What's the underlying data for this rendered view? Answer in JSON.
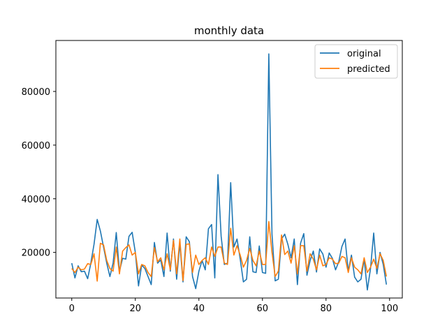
{
  "chart_data": {
    "type": "line",
    "title": "monthly data",
    "xlabel": "",
    "ylabel": "",
    "xlim": [
      -5,
      104
    ],
    "ylim": [
      3000,
      99000
    ],
    "xticks": [
      0,
      20,
      40,
      60,
      80,
      100
    ],
    "yticks": [
      20000,
      40000,
      60000,
      80000
    ],
    "grid": false,
    "legend": "top-right",
    "series": [
      {
        "name": "original",
        "color": "#1f77b4",
        "x": [
          0,
          1,
          2,
          3,
          4,
          5,
          6,
          7,
          8,
          9,
          10,
          11,
          12,
          13,
          14,
          15,
          16,
          17,
          18,
          19,
          20,
          21,
          22,
          23,
          24,
          25,
          26,
          27,
          28,
          29,
          30,
          31,
          32,
          33,
          34,
          35,
          36,
          37,
          38,
          39,
          40,
          41,
          42,
          43,
          44,
          45,
          46,
          47,
          48,
          49,
          50,
          51,
          52,
          53,
          54,
          55,
          56,
          57,
          58,
          59,
          60,
          61,
          62,
          63,
          64,
          65,
          66,
          67,
          68,
          69,
          70,
          71,
          72,
          73,
          74,
          75,
          76,
          77,
          78,
          79,
          80,
          81,
          82,
          83,
          84,
          85,
          86,
          87,
          88,
          89,
          90,
          91,
          92,
          93,
          94,
          95,
          96,
          97,
          98,
          99
        ],
        "values": [
          16000,
          10500,
          15000,
          12800,
          13000,
          10200,
          16000,
          23000,
          32300,
          28000,
          22000,
          16000,
          11000,
          16000,
          27400,
          13000,
          17800,
          17500,
          26000,
          27500,
          20000,
          7500,
          15300,
          14000,
          11000,
          8000,
          23700,
          16000,
          17200,
          11000,
          27200,
          13000,
          25000,
          10000,
          23400,
          9000,
          25800,
          24000,
          11000,
          6500,
          13000,
          17000,
          13500,
          28800,
          30400,
          10500,
          49000,
          26000,
          15500,
          16000,
          46000,
          22000,
          25000,
          17500,
          9000,
          10000,
          25800,
          12800,
          12500,
          22400,
          12500,
          12200,
          94000,
          26800,
          9400,
          10000,
          25000,
          26800,
          23000,
          18000,
          25000,
          8000,
          23500,
          27000,
          11500,
          17000,
          20500,
          12700,
          21300,
          19400,
          14500,
          19800,
          17800,
          13500,
          16500,
          22200,
          25000,
          13000,
          19000,
          10800,
          9000,
          10000,
          17500,
          6000,
          14000,
          27200,
          12000,
          20000,
          15500,
          8000
        ]
      },
      {
        "name": "predicted",
        "color": "#ff7f0e",
        "x": [
          0,
          1,
          2,
          3,
          4,
          5,
          6,
          7,
          8,
          9,
          10,
          11,
          12,
          13,
          14,
          15,
          16,
          17,
          18,
          19,
          20,
          21,
          22,
          23,
          24,
          25,
          26,
          27,
          28,
          29,
          30,
          31,
          32,
          33,
          34,
          35,
          36,
          37,
          38,
          39,
          40,
          41,
          42,
          43,
          44,
          45,
          46,
          47,
          48,
          49,
          50,
          51,
          52,
          53,
          54,
          55,
          56,
          57,
          58,
          59,
          60,
          61,
          62,
          63,
          64,
          65,
          66,
          67,
          68,
          69,
          70,
          71,
          72,
          73,
          74,
          75,
          76,
          77,
          78,
          79,
          80,
          81,
          82,
          83,
          84,
          85,
          86,
          87,
          88,
          89,
          90,
          91,
          92,
          93,
          94,
          95,
          96,
          97,
          98,
          99
        ],
        "values": [
          14000,
          12500,
          14500,
          13500,
          13800,
          15800,
          15500,
          19500,
          9300,
          23400,
          22800,
          17000,
          14000,
          13000,
          22000,
          12000,
          20500,
          21800,
          22800,
          19000,
          20000,
          12000,
          15500,
          15000,
          12500,
          11000,
          21800,
          16500,
          18000,
          13500,
          19500,
          13500,
          24500,
          12000,
          25000,
          9500,
          23000,
          23200,
          12500,
          19000,
          15500,
          17000,
          18000,
          15500,
          22000,
          18500,
          22000,
          22000,
          16000,
          15500,
          29000,
          19000,
          22500,
          19000,
          14500,
          17000,
          21500,
          17000,
          15000,
          20500,
          15500,
          15500,
          31500,
          20000,
          11000,
          13000,
          26500,
          19200,
          20500,
          16000,
          22500,
          12000,
          22500,
          22500,
          13000,
          19500,
          17500,
          13500,
          19000,
          15000,
          15500,
          18000,
          17500,
          15800,
          16000,
          18500,
          18000,
          12500,
          18000,
          14500,
          13500,
          12000,
          18000,
          12500,
          14500,
          17500,
          14000,
          19500,
          17000,
          11000
        ]
      }
    ]
  }
}
